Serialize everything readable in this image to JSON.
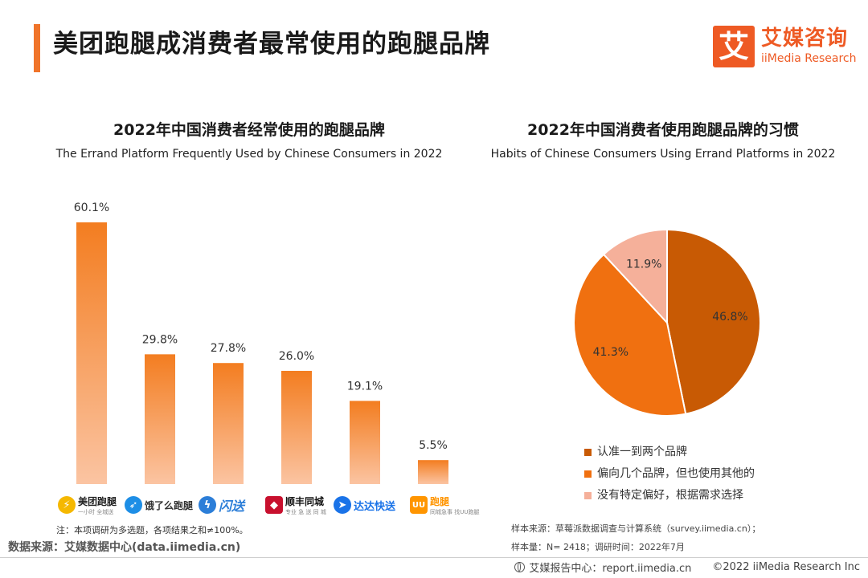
{
  "header": {
    "title": "美团跑腿成消费者最常使用的跑腿品牌",
    "accent_color": "#f0742a"
  },
  "logo": {
    "box_char": "艾",
    "cn": "艾媒咨询",
    "en": "iiMedia Research",
    "color": "#ee5a24"
  },
  "left_chart": {
    "title_cn": "2022年中国消费者经常使用的跑腿品牌",
    "title_en": "The Errand Platform Frequently Used by Chinese Consumers in 2022",
    "brands": [
      {
        "name": "美团跑腿",
        "sub": "一小时 全城送",
        "icon": "runner-icon",
        "color": "#f5b800"
      },
      {
        "name": "饿了么跑腿",
        "sub": "",
        "icon": "bird-icon",
        "color": "#1d8ee6"
      },
      {
        "name": "闪送",
        "sub": "",
        "icon": "lightning-icon",
        "color": "#2c7ed8"
      },
      {
        "name": "顺丰同城",
        "sub": "专业 急 送 同 城",
        "icon": "sf-icon",
        "color": "#c8102e"
      },
      {
        "name": "达达快送",
        "sub": "",
        "icon": "courier-icon",
        "color": "#1a73e8"
      },
      {
        "name": "跑腿",
        "sub": "同城急事 找UU跑腿",
        "icon": "uu-icon",
        "color": "#ff9500"
      }
    ],
    "note": "注：本项调研为多选题，各项结果之和≠100%。"
  },
  "right_chart": {
    "title_cn": "2022年中国消费者使用跑腿品牌的习惯",
    "title_en": "Habits of Chinese Consumers Using Errand Platforms in 2022"
  },
  "chart_data": [
    {
      "type": "bar",
      "categories": [
        "美团跑腿",
        "饿了么跑腿",
        "闪送",
        "顺丰同城",
        "达达快送",
        "UU跑腿"
      ],
      "values": [
        60.1,
        29.8,
        27.8,
        26.0,
        19.1,
        5.5
      ],
      "value_labels": [
        "60.1%",
        "29.8%",
        "27.8%",
        "26.0%",
        "19.1%",
        "5.5%"
      ],
      "title": "2022年中国消费者经常使用的跑腿品牌",
      "subtitle": "The Errand Platform Frequently Used by Chinese Consumers in 2022",
      "ylim": [
        0,
        60.1
      ],
      "grid": false,
      "colors": {
        "top": "#f37d20",
        "bottom": "#fbc4a2"
      }
    },
    {
      "type": "pie",
      "labels": [
        "认准一到两个品牌",
        "偏向几个品牌，但也使用其他的",
        "没有特定偏好，根据需求选择"
      ],
      "values": [
        46.8,
        41.3,
        11.9
      ],
      "value_labels": [
        "46.8%",
        "41.3%",
        "11.9%"
      ],
      "colors": [
        "#c85a04",
        "#f07010",
        "#f5b09a"
      ],
      "title": "2022年中国消费者使用跑腿品牌的习惯",
      "subtitle": "Habits of Chinese Consumers Using Errand Platforms in 2022",
      "legend_position": "bottom"
    }
  ],
  "sources": {
    "data_source": "数据来源：艾媒数据中心(data.iimedia.cn)",
    "sample_source": "样本来源：草莓派数据调查与计算系统（survey.iimedia.cn）；",
    "sample_size": "样本量：N= 2418；调研时间：2022年7月"
  },
  "footer": {
    "center": "艾媒报告中心：report.iimedia.cn",
    "copyright": "©2022  iiMedia Research  Inc"
  }
}
